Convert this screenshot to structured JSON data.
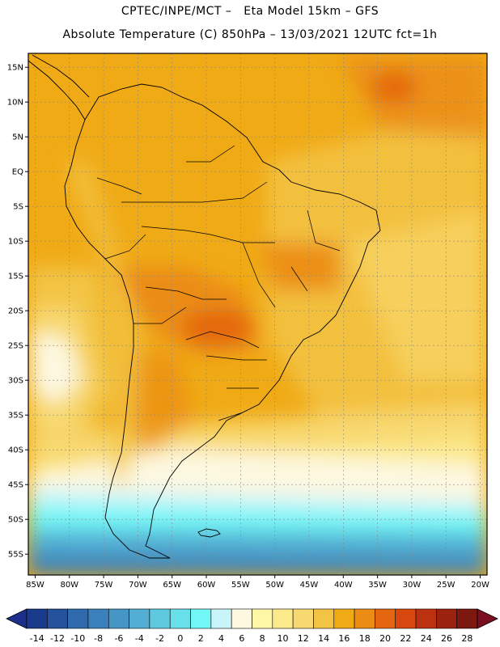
{
  "header": {
    "line1": "CPTEC/INPE/MCT –   Eta Model 15km – GFS",
    "line2": "Absolute Temperature (C) 850hPa – 13/03/2021 12UTC fct=1h"
  },
  "axes": {
    "lat_labels": [
      "15N",
      "10N",
      "5N",
      "EQ",
      "5S",
      "10S",
      "15S",
      "20S",
      "25S",
      "30S",
      "35S",
      "40S",
      "45S",
      "50S",
      "55S"
    ],
    "lat_values": [
      15,
      10,
      5,
      0,
      -5,
      -10,
      -15,
      -20,
      -25,
      -30,
      -35,
      -40,
      -45,
      -50,
      -55
    ],
    "lon_labels": [
      "85W",
      "80W",
      "75W",
      "70W",
      "65W",
      "60W",
      "55W",
      "50W",
      "45W",
      "40W",
      "35W",
      "30W",
      "25W",
      "20W"
    ],
    "lon_values": [
      -85,
      -80,
      -75,
      -70,
      -65,
      -60,
      -55,
      -50,
      -45,
      -40,
      -35,
      -30,
      -25,
      -20
    ],
    "lon_range": [
      -86,
      -19
    ],
    "lat_range": [
      -58,
      17
    ]
  },
  "colorbar": {
    "labels": [
      "-14",
      "-12",
      "-10",
      "-8",
      "-6",
      "-4",
      "-2",
      "0",
      "2",
      "4",
      "6",
      "8",
      "10",
      "12",
      "14",
      "16",
      "18",
      "20",
      "22",
      "24",
      "26",
      "28"
    ],
    "colors": [
      "#1a3a8c",
      "#24529c",
      "#2e6aac",
      "#3a80bc",
      "#4596c6",
      "#52aed2",
      "#5ec8de",
      "#68e0ea",
      "#72f6f6",
      "#c8f4fa",
      "#fdf8e0",
      "#fdf7a6",
      "#fbe98c",
      "#f8d870",
      "#f3c444",
      "#f0aa16",
      "#eb8c14",
      "#e46610",
      "#d8480e",
      "#bc3210",
      "#9a220e",
      "#7c1810"
    ],
    "under_color": "#1c2f8a",
    "over_color": "#7a0f20"
  },
  "colors": {
    "border": "#000000",
    "grid": "#888888"
  }
}
